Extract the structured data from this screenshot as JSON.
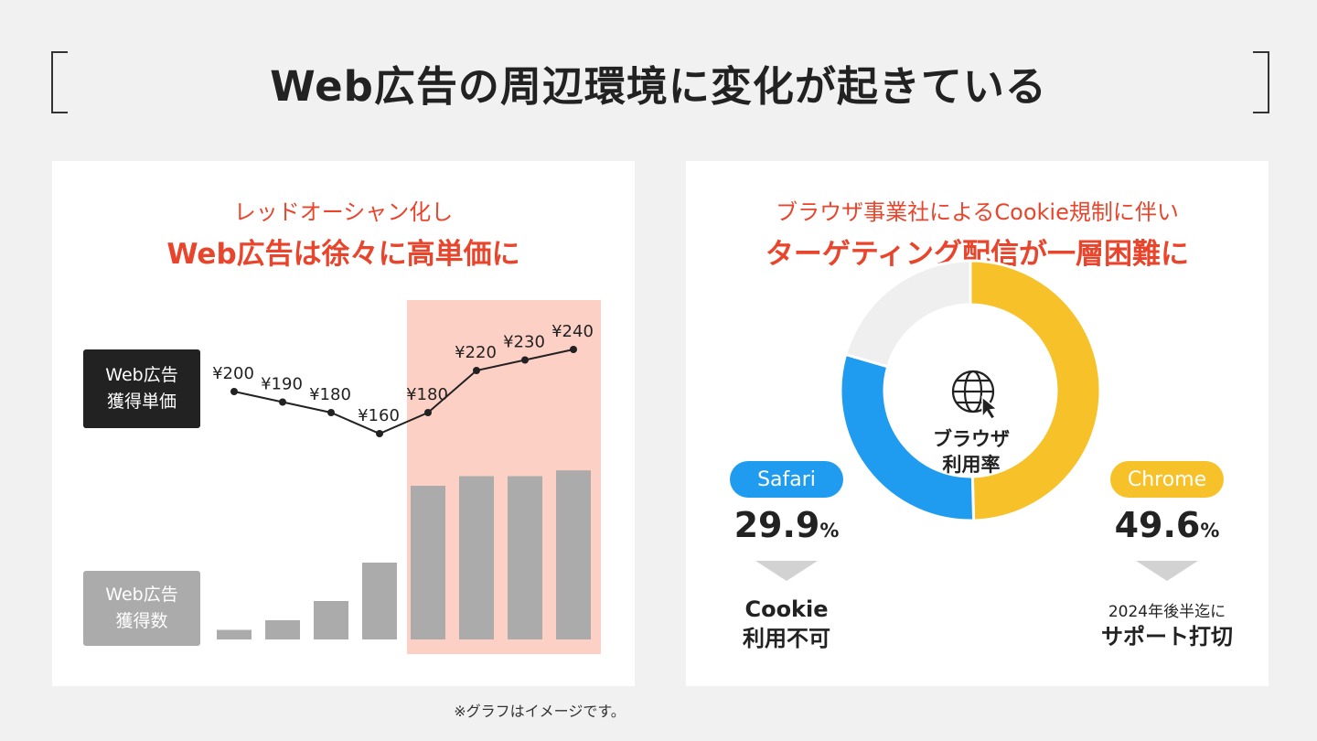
{
  "header": {
    "title": "Web広告の周辺環境に変化が起きている"
  },
  "left_panel": {
    "subtitle": "レッドオーシャン化し",
    "headline": "Web広告は徐々に高単価に",
    "line_label": [
      "Web広告",
      "獲得単価"
    ],
    "bar_label": [
      "Web広告",
      "獲得数"
    ]
  },
  "right_panel": {
    "subtitle": "ブラウザ事業社によるCookie規制に伴い",
    "headline": "ターゲティング配信が一層困難に",
    "center_label": [
      "ブラウザ",
      "利用率"
    ],
    "safari": {
      "name": "Safari",
      "share": "29.9",
      "unit": "%",
      "note": [
        "Cookie",
        "利用不可"
      ]
    },
    "chrome": {
      "name": "Chrome",
      "share": "49.6",
      "unit": "%",
      "note_small": "2024年後半迄に",
      "note": "サポート打切"
    },
    "icon": "globe-cursor-icon"
  },
  "footnote": "※グラフはイメージです。",
  "colors": {
    "accent_red": "#e8452c",
    "highlight_bg": "#fdd0c6",
    "safari_blue": "#1f9cf0",
    "chrome_yellow": "#f7c12a",
    "other_gray": "#efefef",
    "bar_gray": "#ababab"
  },
  "chart_data": [
    {
      "type": "line",
      "name": "Web広告獲得単価",
      "values": [
        200,
        190,
        180,
        160,
        180,
        220,
        230,
        240
      ],
      "labels": [
        "¥200",
        "¥190",
        "¥180",
        "¥160",
        "¥180",
        "¥220",
        "¥230",
        "¥240"
      ],
      "highlight_from_index": 4
    },
    {
      "type": "bar",
      "name": "Web広告獲得数",
      "values": [
        2.5,
        5,
        10,
        20,
        40,
        42.5,
        42.5,
        44
      ],
      "highlight_from_index": 4
    },
    {
      "type": "pie",
      "name": "ブラウザ利用率",
      "slices": [
        {
          "label": "Chrome",
          "value": 49.6,
          "color": "#f7c12a"
        },
        {
          "label": "Safari",
          "value": 29.9,
          "color": "#1f9cf0"
        },
        {
          "label": "",
          "value": 20.5,
          "color": "#efefef"
        }
      ]
    }
  ]
}
